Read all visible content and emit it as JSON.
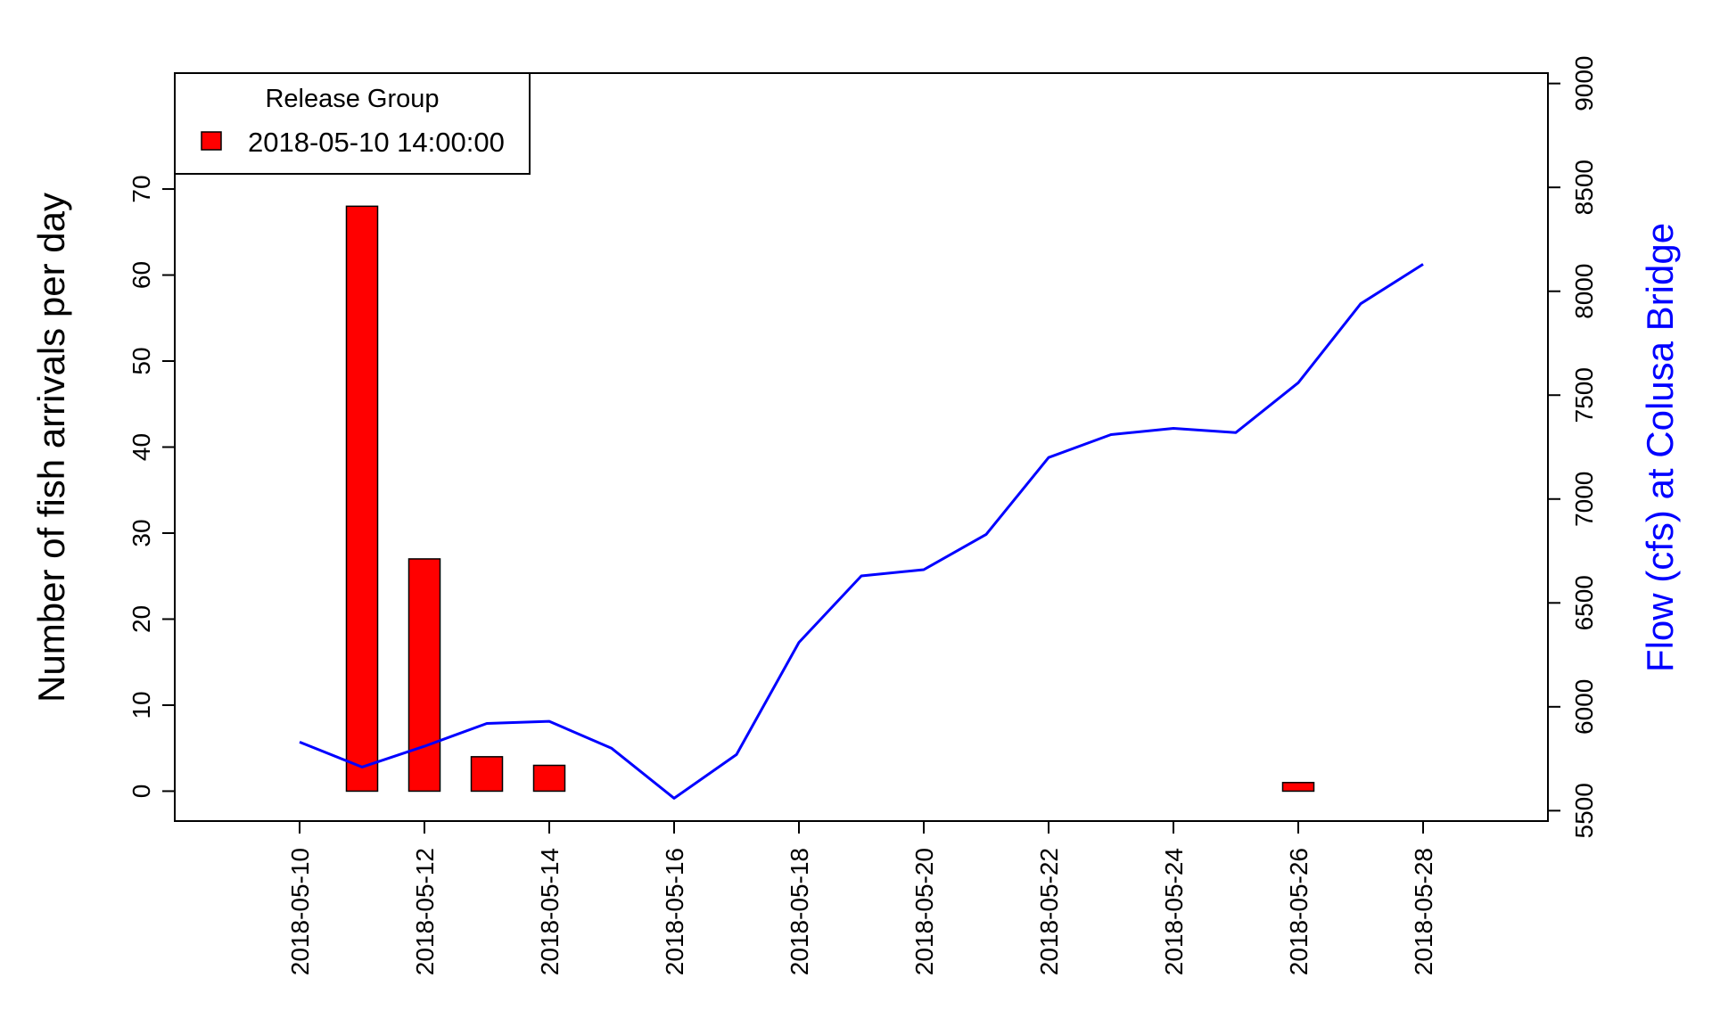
{
  "chart_data": {
    "type": "bar",
    "title": "",
    "xlabel": "",
    "ylabel_left": "Number of fish arrivals per day",
    "ylabel_right": "Flow (cfs) at Colusa Bridge",
    "x_tick_labels": [
      "2018-05-10",
      "2018-05-12",
      "2018-05-14",
      "2018-05-16",
      "2018-05-18",
      "2018-05-20",
      "2018-05-22",
      "2018-05-24",
      "2018-05-26",
      "2018-05-28"
    ],
    "x_ticks": [
      "2018-05-10",
      "2018-05-12",
      "2018-05-14",
      "2018-05-16",
      "2018-05-18",
      "2018-05-20",
      "2018-05-22",
      "2018-05-24",
      "2018-05-26",
      "2018-05-28"
    ],
    "xlim": [
      "2018-05-08",
      "2018-05-30"
    ],
    "ylim_left": [
      0,
      80
    ],
    "yticks_left": [
      0,
      10,
      20,
      30,
      40,
      50,
      60,
      70
    ],
    "ylim_right": [
      5450,
      9050
    ],
    "yticks_right": [
      5500,
      6000,
      6500,
      7000,
      7500,
      8000,
      8500,
      9000
    ],
    "legend": {
      "title": "Release Group",
      "placement": "top-left",
      "entries": [
        {
          "label": "2018-05-10 14:00:00",
          "color": "#ff0000"
        }
      ]
    },
    "bars": {
      "name": "2018-05-10 14:00:00",
      "color": "#ff0000",
      "x": [
        "2018-05-11",
        "2018-05-12",
        "2018-05-13",
        "2018-05-14",
        "2018-05-26"
      ],
      "values": [
        68,
        27,
        4,
        3,
        1
      ]
    },
    "line": {
      "axis": "right",
      "color": "#0000ff",
      "x": [
        "2018-05-10",
        "2018-05-11",
        "2018-05-12",
        "2018-05-13",
        "2018-05-14",
        "2018-05-15",
        "2018-05-16",
        "2018-05-17",
        "2018-05-18",
        "2018-05-19",
        "2018-05-20",
        "2018-05-21",
        "2018-05-22",
        "2018-05-23",
        "2018-05-24",
        "2018-05-25",
        "2018-05-26",
        "2018-05-27",
        "2018-05-28"
      ],
      "values": [
        5830,
        5710,
        5810,
        5920,
        5930,
        5800,
        5560,
        5770,
        6310,
        6630,
        6660,
        6830,
        7200,
        7310,
        7340,
        7320,
        7560,
        7940,
        8130
      ]
    }
  }
}
